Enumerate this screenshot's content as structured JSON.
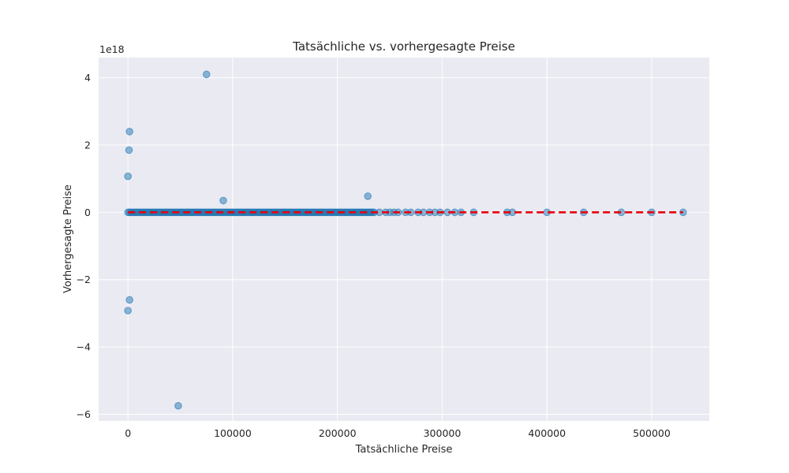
{
  "chart_data": {
    "type": "scatter",
    "title": "Tatsächliche vs. vorhergesagte Preise",
    "xlabel": "Tatsächliche Preise",
    "ylabel": "Vorhergesagte Preise",
    "y_offset_label": "1e18",
    "xlim": [
      -28000,
      555000
    ],
    "ylim": [
      -6.2,
      4.6
    ],
    "y_scale_factor": 1e+18,
    "x_ticks": [
      0,
      100000,
      200000,
      300000,
      400000,
      500000
    ],
    "x_tick_labels": [
      "0",
      "100000",
      "200000",
      "300000",
      "400000",
      "500000"
    ],
    "y_ticks": [
      -6,
      -4,
      -2,
      0,
      2,
      4
    ],
    "y_tick_labels": [
      "−6",
      "−4",
      "−2",
      "0",
      "2",
      "4"
    ],
    "grid": true,
    "colors": {
      "background": "#eaeaf2",
      "grid": "#ffffff",
      "points": "#1f77b4",
      "reference_line": "#e8000b"
    },
    "reference_line": {
      "style": "dashed",
      "x": [
        0,
        530000
      ],
      "y": [
        0,
        0
      ]
    },
    "outliers": [
      {
        "x": 75000,
        "y": 4.1
      },
      {
        "x": 1500,
        "y": 2.4
      },
      {
        "x": 1000,
        "y": 1.85
      },
      {
        "x": 0,
        "y": 1.07
      },
      {
        "x": 91000,
        "y": 0.35
      },
      {
        "x": 229000,
        "y": 0.48
      },
      {
        "x": 1500,
        "y": -2.6
      },
      {
        "x": 0,
        "y": -2.92
      },
      {
        "x": 48000,
        "y": -5.75
      }
    ],
    "dense_band": {
      "y": 0,
      "x_min": 0,
      "x_max": 235000,
      "sparse_x": [
        240000,
        246000,
        250000,
        254000,
        258000,
        265000,
        270000,
        277000,
        282000,
        288000,
        293000,
        298000,
        305000,
        312000,
        318000,
        330000,
        362000,
        367000,
        400000,
        435000,
        471000,
        500000,
        530000
      ]
    }
  }
}
